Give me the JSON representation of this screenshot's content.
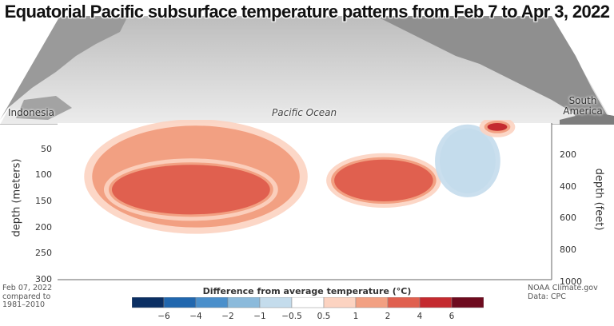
{
  "title": "Equatorial Pacific subsurface temperature patterns from Feb 7 to Apr 3, 2022",
  "map_labels": {
    "west": "Indonesia",
    "center": "Pacific Ocean",
    "east_line1": "South",
    "east_line2": "America"
  },
  "footnote_left": [
    "Feb 07, 2022",
    "compared to",
    "1981–2010"
  ],
  "footnote_right": [
    "NOAA Climate.gov",
    "Data: CPC"
  ],
  "colors": {
    "ocean_top": "#d7d7d7",
    "land": "#8f8f8f"
  },
  "chart_data": {
    "type": "heatmap",
    "title": "Equatorial Pacific subsurface temperature patterns from Feb 7 to Apr 3, 2022",
    "ylabel": "depth (meters)",
    "ylabel_right": "depth (feet)",
    "ylim": [
      0,
      300
    ],
    "y_ticks": [
      50,
      100,
      150,
      200,
      250,
      300
    ],
    "y_ticks_right": [
      200,
      400,
      600,
      800,
      1000
    ],
    "legend": {
      "title": "Difference from average temperature (°C)",
      "tick_labels": [
        "−6",
        "−4",
        "−2",
        "−1",
        "−0.5",
        "0.5",
        "1",
        "2",
        "4",
        "6"
      ],
      "colors": [
        "#0b2f63",
        "#2167ae",
        "#4a8fcb",
        "#8bbadb",
        "#c4dcec",
        "#ffffff",
        "#fcd3c1",
        "#f2a082",
        "#e0604f",
        "#c42a2f",
        "#6e0b1f"
      ]
    },
    "anomalies": [
      {
        "name": "warm-main-band",
        "level_celsius": 1,
        "x_start": 0.07,
        "x_end": 0.49,
        "depth_top": 5,
        "depth_bottom": 200
      },
      {
        "name": "warm-main-band-core",
        "level_celsius": 2,
        "x_start": 0.11,
        "x_end": 0.43,
        "depth_top": 80,
        "depth_bottom": 175
      },
      {
        "name": "warm-east-lobe",
        "level_celsius": 2,
        "x_start": 0.56,
        "x_end": 0.76,
        "depth_top": 70,
        "depth_bottom": 150
      },
      {
        "name": "cool-east-core",
        "level_celsius": -2,
        "x_start": 0.78,
        "x_end": 0.88,
        "depth_top": 15,
        "depth_bottom": 130
      },
      {
        "name": "warm-east-surface",
        "level_celsius": 4,
        "x_start": 0.87,
        "x_end": 0.91,
        "depth_top": 0,
        "depth_bottom": 15
      }
    ]
  }
}
